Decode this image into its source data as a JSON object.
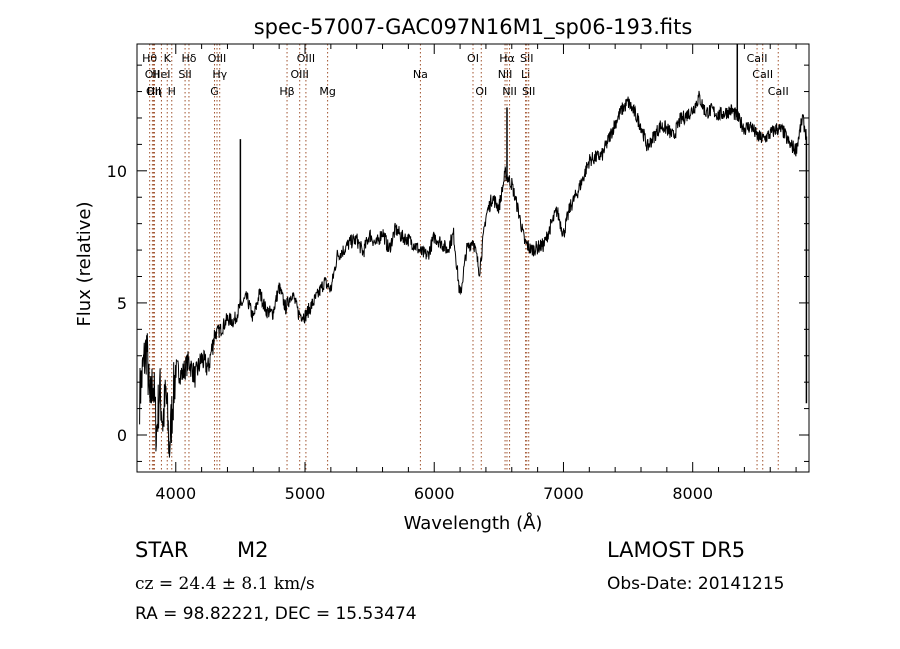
{
  "chart_data": {
    "type": "line",
    "title": "spec-57007-GAC097N16M1_sp06-193.fits",
    "xlabel": "Wavelength (Å)",
    "ylabel": "Flux (relative)",
    "xlim": [
      3700,
      8900
    ],
    "ylim": [
      -1.4,
      14.8
    ],
    "x_ticks": [
      4000,
      5000,
      6000,
      7000,
      8000
    ],
    "y_ticks": [
      0,
      5,
      10
    ],
    "series": [
      {
        "x": [
          3720,
          3750,
          3775,
          3800,
          3825,
          3850,
          3875,
          3900,
          3925,
          3950,
          3975,
          4000,
          4050,
          4100,
          4150,
          4200,
          4250,
          4300,
          4350,
          4400,
          4450,
          4500,
          4550,
          4600,
          4650,
          4700,
          4750,
          4800,
          4850,
          4900,
          4950,
          5000,
          5050,
          5100,
          5150,
          5200,
          5250,
          5300,
          5350,
          5400,
          5450,
          5500,
          5550,
          5600,
          5650,
          5700,
          5750,
          5800,
          5850,
          5900,
          5950,
          6000,
          6050,
          6100,
          6150,
          6200,
          6250,
          6300,
          6350,
          6400,
          6450,
          6500,
          6550,
          6600,
          6650,
          6700,
          6750,
          6800,
          6850,
          6900,
          6950,
          7000,
          7050,
          7100,
          7150,
          7200,
          7250,
          7300,
          7350,
          7400,
          7450,
          7500,
          7550,
          7600,
          7650,
          7700,
          7750,
          7800,
          7850,
          7900,
          7950,
          8000,
          8050,
          8100,
          8150,
          8200,
          8250,
          8300,
          8350,
          8400,
          8450,
          8500,
          8550,
          8600,
          8650,
          8700,
          8750,
          8800,
          8850,
          8880
        ],
        "y": [
          1.5,
          2.6,
          3.4,
          1.0,
          2.2,
          0.0,
          1.8,
          0.5,
          1.6,
          -0.6,
          1.2,
          2.5,
          2.3,
          2.8,
          2.2,
          2.9,
          2.5,
          3.8,
          4.0,
          4.4,
          4.3,
          4.9,
          5.2,
          4.4,
          5.4,
          4.7,
          4.6,
          5.6,
          4.8,
          5.4,
          4.6,
          4.5,
          4.9,
          5.3,
          5.8,
          5.5,
          6.8,
          7.0,
          7.3,
          7.4,
          6.9,
          7.6,
          7.2,
          7.7,
          7.0,
          7.8,
          7.5,
          7.4,
          7.2,
          6.9,
          6.8,
          7.5,
          7.3,
          7.0,
          7.6,
          5.2,
          7.0,
          7.4,
          6.2,
          8.3,
          9.0,
          8.6,
          9.9,
          9.5,
          8.5,
          7.3,
          7.0,
          7.1,
          7.2,
          7.9,
          8.5,
          7.6,
          8.6,
          9.1,
          9.7,
          10.4,
          10.5,
          10.6,
          11.2,
          11.8,
          12.3,
          12.6,
          12.2,
          11.7,
          10.9,
          11.3,
          11.7,
          11.6,
          11.3,
          11.9,
          12.1,
          12.3,
          12.8,
          12.2,
          12.3,
          12.1,
          12.2,
          12.3,
          12.0,
          11.6,
          11.7,
          11.3,
          11.2,
          11.4,
          11.6,
          11.5,
          11.0,
          10.8,
          12.0,
          11.3
        ]
      }
    ],
    "spikes": [
      {
        "x": 4500,
        "y": 11.2
      },
      {
        "x": 6563,
        "y": 12.4
      },
      {
        "x": 8345,
        "y": 14.8
      },
      {
        "x": 8880,
        "y": 1.2
      }
    ],
    "lines": [
      {
        "x": 3798,
        "label": "Hθ",
        "row": 0
      },
      {
        "x": 3819,
        "label": "OII",
        "row": 1
      },
      {
        "x": 3828,
        "label": "OII",
        "row": 2
      },
      {
        "x": 3835,
        "label": "Hη",
        "row": 2
      },
      {
        "x": 3889,
        "label": "HeI",
        "row": 1
      },
      {
        "x": 3934,
        "label": "K",
        "row": 0
      },
      {
        "x": 3969,
        "label": "H",
        "row": 2
      },
      {
        "x": 4072,
        "label": "SII",
        "row": 1
      },
      {
        "x": 4102,
        "label": "Hδ",
        "row": 0
      },
      {
        "x": 4300,
        "label": "G",
        "row": 2
      },
      {
        "x": 4319,
        "label": "OIII",
        "row": 0
      },
      {
        "x": 4340,
        "label": "Hγ",
        "row": 1
      },
      {
        "x": 4861,
        "label": "Hβ",
        "row": 2
      },
      {
        "x": 4959,
        "label": "OIII",
        "row": 1
      },
      {
        "x": 5007,
        "label": "OIII",
        "row": 0
      },
      {
        "x": 5175,
        "label": "Mg",
        "row": 2
      },
      {
        "x": 5893,
        "label": "Na",
        "row": 1
      },
      {
        "x": 6300,
        "label": "OI",
        "row": 0
      },
      {
        "x": 6364,
        "label": "OI",
        "row": 2
      },
      {
        "x": 6548,
        "label": "NII",
        "row": 1
      },
      {
        "x": 6563,
        "label": "Hα",
        "row": 0
      },
      {
        "x": 6583,
        "label": "NII",
        "row": 2
      },
      {
        "x": 6707,
        "label": "Li",
        "row": 1
      },
      {
        "x": 6716,
        "label": "SII",
        "row": 0
      },
      {
        "x": 6731,
        "label": "SII",
        "row": 2
      },
      {
        "x": 8498,
        "label": "CaII",
        "row": 0
      },
      {
        "x": 8542,
        "label": "CaII",
        "row": 1
      },
      {
        "x": 8662,
        "label": "CaII",
        "row": 2
      }
    ],
    "colors": {
      "spectrum": "#000000",
      "lines": "#a0522d",
      "axes": "#000000"
    },
    "grid": false,
    "legend": "none"
  },
  "info": {
    "object_class": "STAR",
    "subclass": "M2",
    "survey": "LAMOST DR5",
    "velocity": "cz = 24.4 ± 8.1 km/s",
    "obs_date": "Obs-Date: 20141215",
    "radec": "RA =  98.82221, DEC =  15.53474"
  }
}
